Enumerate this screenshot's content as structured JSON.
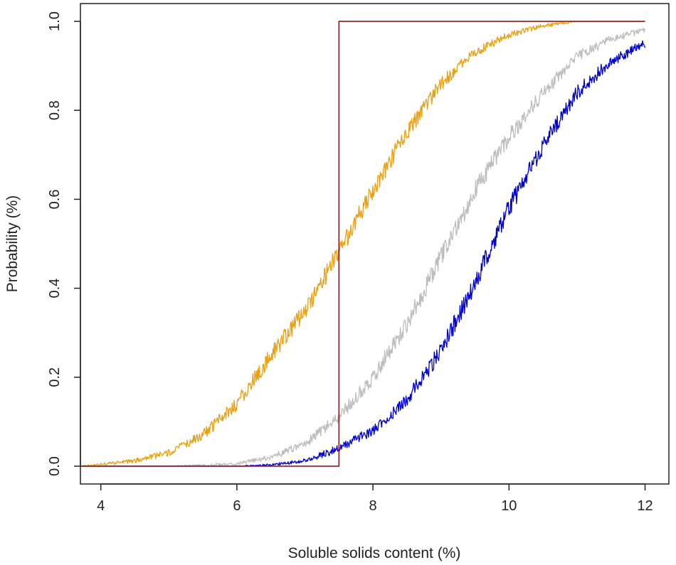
{
  "chart_data": {
    "type": "line",
    "title": "",
    "xlabel": "Soluble solids content (%)",
    "ylabel": "Probability (%)",
    "xlim": [
      3.7,
      12.35
    ],
    "ylim": [
      -0.04,
      1.04
    ],
    "x_ticks": [
      4,
      6,
      8,
      10,
      12
    ],
    "x_tick_labels": [
      "4",
      "6",
      "8",
      "10",
      "12"
    ],
    "y_ticks": [
      0,
      0.2,
      0.4,
      0.6,
      0.8,
      1.0
    ],
    "y_tick_labels": [
      "0.0",
      "0.2",
      "0.4",
      "0.6",
      "0.8",
      "1.0"
    ],
    "grid": false,
    "legend": "none",
    "series": [
      {
        "color": "#8b1a1a",
        "style": "step",
        "x": [
          3.7,
          7.5,
          7.5,
          12.0
        ],
        "y": [
          0.0,
          0.0,
          1.0,
          1.0
        ]
      },
      {
        "color": "#e6a114",
        "style": "noisy-line",
        "x": [
          3.7,
          4.0,
          4.5,
          5.0,
          5.5,
          6.0,
          6.5,
          7.0,
          7.5,
          8.0,
          8.5,
          9.0,
          9.5,
          10.0,
          10.5,
          11.0,
          11.5,
          12.0
        ],
        "y": [
          0.0,
          0.004,
          0.012,
          0.03,
          0.07,
          0.14,
          0.25,
          0.35,
          0.48,
          0.62,
          0.75,
          0.86,
          0.93,
          0.97,
          0.99,
          1.0,
          1.0,
          1.0
        ]
      },
      {
        "color": "#bdbdbd",
        "style": "noisy-line",
        "x": [
          3.7,
          5.0,
          6.0,
          6.5,
          7.0,
          7.5,
          8.0,
          8.5,
          9.0,
          9.5,
          10.0,
          10.5,
          11.0,
          11.5,
          12.0
        ],
        "y": [
          0.0,
          0.0,
          0.005,
          0.02,
          0.05,
          0.11,
          0.2,
          0.32,
          0.47,
          0.62,
          0.74,
          0.84,
          0.92,
          0.96,
          0.98
        ]
      },
      {
        "color": "#0000cc",
        "style": "noisy-line",
        "x": [
          3.7,
          6.0,
          6.5,
          7.0,
          7.5,
          8.0,
          8.5,
          9.0,
          9.5,
          10.0,
          10.5,
          11.0,
          11.5,
          12.0
        ],
        "y": [
          0.0,
          0.0,
          0.003,
          0.012,
          0.04,
          0.08,
          0.15,
          0.26,
          0.41,
          0.58,
          0.72,
          0.84,
          0.91,
          0.95
        ]
      }
    ]
  }
}
